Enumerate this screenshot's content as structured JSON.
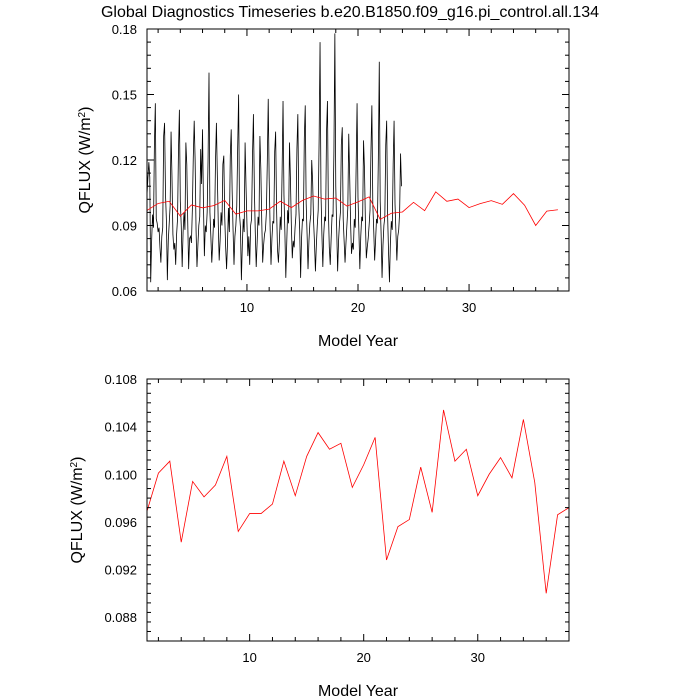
{
  "figure": {
    "title": "Global Diagnostics Timeseries b.e20.B1850.f09_g16.pi_control.all.134"
  },
  "colors": {
    "monthly": "#000000",
    "annual": "#ff0000",
    "axis": "#000000"
  },
  "chart_data": [
    {
      "type": "line",
      "title": "Global Diagnostics Timeseries b.e20.B1850.f09_g16.pi_control.all.134",
      "xlabel": "Model Year",
      "ylabel": "QFLUX (W/m",
      "ylabel_sup": "2",
      "ylabel_close": ")",
      "xlim": [
        1,
        39
      ],
      "ylim": [
        0.06,
        0.18
      ],
      "x_ticks": [
        10,
        20,
        30
      ],
      "x_tick_labels": [
        "10",
        "20",
        "30"
      ],
      "y_ticks": [
        0.06,
        0.09,
        0.12,
        0.15,
        0.18
      ],
      "y_tick_labels": [
        "0.06",
        "0.09",
        "0.12",
        "0.15",
        "0.18"
      ],
      "grid": false,
      "series": [
        {
          "color": "#000000",
          "x_start": 1.0,
          "x_step": 0.08333,
          "values": [
            0.104,
            0.112,
            0.119,
            0.112,
            0.064,
            0.083,
            0.095,
            0.089,
            0.127,
            0.146,
            0.093,
            0.091,
            0.087,
            0.089,
            0.08,
            0.073,
            0.085,
            0.089,
            0.131,
            0.137,
            0.104,
            0.092,
            0.065,
            0.083,
            0.091,
            0.099,
            0.133,
            0.112,
            0.086,
            0.079,
            0.082,
            0.072,
            0.086,
            0.093,
            0.124,
            0.143,
            0.101,
            0.09,
            0.071,
            0.087,
            0.096,
            0.088,
            0.128,
            0.118,
            0.092,
            0.07,
            0.084,
            0.085,
            0.082,
            0.097,
            0.121,
            0.138,
            0.12,
            0.088,
            0.071,
            0.081,
            0.09,
            0.094,
            0.125,
            0.109,
            0.134,
            0.1,
            0.076,
            0.09,
            0.087,
            0.096,
            0.121,
            0.16,
            0.096,
            0.085,
            0.073,
            0.082,
            0.093,
            0.089,
            0.119,
            0.137,
            0.113,
            0.091,
            0.074,
            0.083,
            0.096,
            0.09,
            0.118,
            0.122,
            0.094,
            0.08,
            0.07,
            0.082,
            0.098,
            0.087,
            0.122,
            0.134,
            0.106,
            0.088,
            0.072,
            0.085,
            0.09,
            0.099,
            0.126,
            0.15,
            0.095,
            0.089,
            0.065,
            0.081,
            0.093,
            0.087,
            0.128,
            0.108,
            0.091,
            0.076,
            0.085,
            0.072,
            0.09,
            0.093,
            0.122,
            0.141,
            0.107,
            0.087,
            0.071,
            0.082,
            0.094,
            0.09,
            0.131,
            0.116,
            0.092,
            0.073,
            0.081,
            0.086,
            0.088,
            0.096,
            0.119,
            0.148,
            0.112,
            0.09,
            0.072,
            0.084,
            0.092,
            0.091,
            0.124,
            0.133,
            0.098,
            0.079,
            0.073,
            0.082,
            0.094,
            0.088,
            0.115,
            0.147,
            0.104,
            0.087,
            0.066,
            0.082,
            0.097,
            0.091,
            0.128,
            0.111,
            0.09,
            0.075,
            0.083,
            0.08,
            0.089,
            0.095,
            0.125,
            0.141,
            0.099,
            0.088,
            0.066,
            0.084,
            0.093,
            0.092,
            0.13,
            0.145,
            0.1,
            0.086,
            0.07,
            0.083,
            0.091,
            0.095,
            0.12,
            0.11,
            0.092,
            0.082,
            0.069,
            0.081,
            0.09,
            0.097,
            0.129,
            0.174,
            0.105,
            0.086,
            0.071,
            0.086,
            0.094,
            0.092,
            0.133,
            0.147,
            0.097,
            0.08,
            0.072,
            0.084,
            0.095,
            0.094,
            0.124,
            0.178,
            0.108,
            0.088,
            0.069,
            0.083,
            0.091,
            0.096,
            0.127,
            0.135,
            0.093,
            0.083,
            0.073,
            0.082,
            0.09,
            0.098,
            0.132,
            0.113,
            0.091,
            0.077,
            0.082,
            0.079,
            0.093,
            0.089,
            0.117,
            0.146,
            0.103,
            0.087,
            0.07,
            0.085,
            0.094,
            0.092,
            0.129,
            0.116,
            0.092,
            0.075,
            0.08,
            0.084,
            0.09,
            0.097,
            0.124,
            0.145,
            0.1,
            0.088,
            0.074,
            0.083,
            0.093,
            0.091,
            0.121,
            0.165,
            0.101,
            0.086,
            0.066,
            0.081,
            0.09,
            0.094,
            0.127,
            0.138,
            0.095,
            0.078,
            0.064,
            0.082,
            0.092,
            0.088,
            0.118,
            0.138,
            0.1,
            0.087,
            0.074,
            0.085,
            0.088,
            0.096,
            0.123,
            0.108
          ]
        },
        {
          "color": "#ff0000",
          "x": [
            1,
            2,
            3,
            4,
            5,
            6,
            7,
            8,
            9,
            10,
            11,
            12,
            13,
            14,
            15,
            16,
            17,
            18,
            19,
            20,
            21,
            22,
            23,
            24,
            25,
            26,
            27,
            28,
            29,
            30,
            31,
            32,
            33,
            34,
            35,
            36,
            37,
            38
          ],
          "values": [
            0.0969,
            0.1001,
            0.1011,
            0.0943,
            0.0994,
            0.0981,
            0.0991,
            0.1015,
            0.0952,
            0.0967,
            0.0967,
            0.0975,
            0.1011,
            0.0982,
            0.1015,
            0.1035,
            0.1021,
            0.1026,
            0.0989,
            0.1008,
            0.1031,
            0.0928,
            0.0956,
            0.0962,
            0.1006,
            0.0968,
            0.1054,
            0.1011,
            0.1021,
            0.0982,
            0.1,
            0.1014,
            0.0997,
            0.1046,
            0.0993,
            0.09,
            0.0966,
            0.0972
          ]
        }
      ]
    },
    {
      "type": "line",
      "title": "",
      "xlabel": "Model Year",
      "ylabel": "QFLUX (W/m",
      "ylabel_sup": "2",
      "ylabel_close": ")",
      "xlim": [
        1,
        38
      ],
      "ylim": [
        0.086,
        0.108
      ],
      "x_ticks": [
        10,
        20,
        30
      ],
      "x_tick_labels": [
        "10",
        "20",
        "30"
      ],
      "y_ticks": [
        0.088,
        0.092,
        0.096,
        0.1,
        0.104,
        0.108
      ],
      "y_tick_labels": [
        "0.088",
        "0.092",
        "0.096",
        "0.100",
        "0.104",
        "0.108"
      ],
      "grid": false,
      "series": [
        {
          "color": "#ff0000",
          "x": [
            1,
            2,
            3,
            4,
            5,
            6,
            7,
            8,
            9,
            10,
            11,
            12,
            13,
            14,
            15,
            16,
            17,
            18,
            19,
            20,
            21,
            22,
            23,
            24,
            25,
            26,
            27,
            28,
            29,
            30,
            31,
            32,
            33,
            34,
            35,
            36,
            37,
            38
          ],
          "values": [
            0.0969,
            0.1001,
            0.1011,
            0.0943,
            0.0994,
            0.0981,
            0.0991,
            0.1015,
            0.0952,
            0.0967,
            0.0967,
            0.0975,
            0.1011,
            0.0982,
            0.1015,
            0.1035,
            0.1021,
            0.1026,
            0.0989,
            0.1008,
            0.1031,
            0.0928,
            0.0956,
            0.0962,
            0.1006,
            0.0968,
            0.1054,
            0.1011,
            0.1021,
            0.0982,
            0.1,
            0.1014,
            0.0997,
            0.1046,
            0.0993,
            0.09,
            0.0966,
            0.0972
          ]
        }
      ]
    }
  ]
}
